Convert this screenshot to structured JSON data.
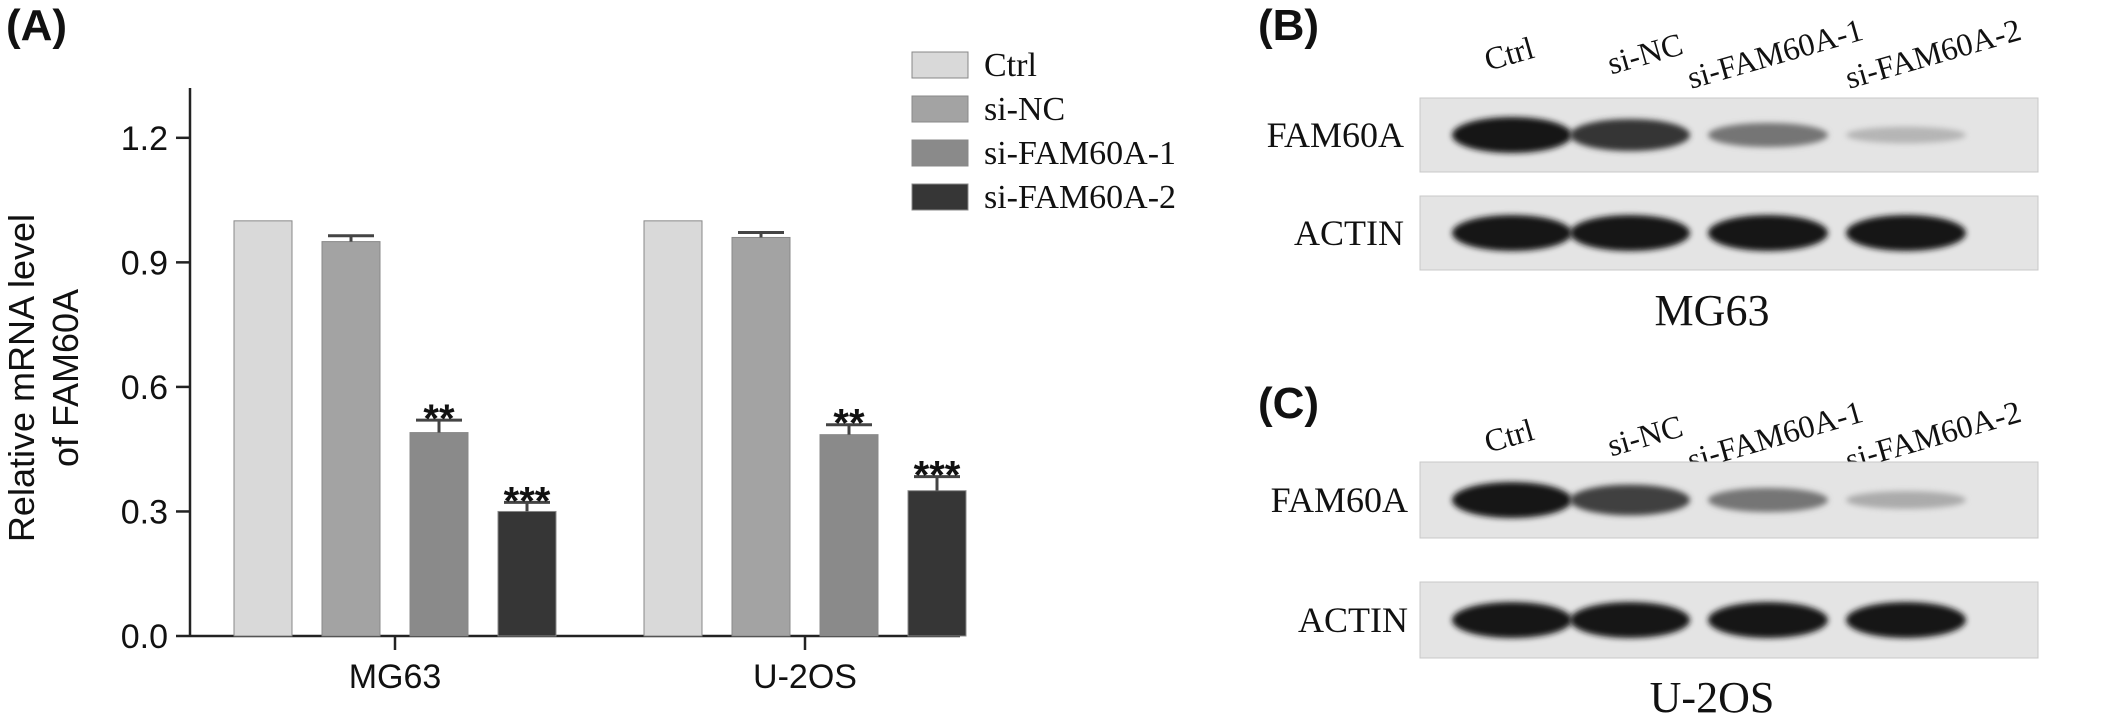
{
  "chart_data": {
    "type": "bar",
    "panel": "(A)",
    "categories": [
      "MG63",
      "U-2OS"
    ],
    "ylabel_lines": [
      "Relative mRNA level",
      "of FAM60A"
    ],
    "ylim": [
      0,
      1.32
    ],
    "yticks": [
      0.0,
      0.3,
      0.6,
      0.9,
      1.2
    ],
    "ytick_labels": [
      "0.0",
      "0.3",
      "0.6",
      "0.9",
      "1.2"
    ],
    "legend_position": "top-right",
    "grid": false,
    "series": [
      {
        "name": "Ctrl",
        "color": "#d9d9d9",
        "values": [
          1.0,
          1.0
        ],
        "errors": [
          0,
          0
        ],
        "significance": [
          "",
          ""
        ]
      },
      {
        "name": "si-NC",
        "color": "#a3a3a3",
        "values": [
          0.95,
          0.96
        ],
        "errors": [
          0.014,
          0.012
        ],
        "significance": [
          "",
          ""
        ]
      },
      {
        "name": "si-FAM60A-1",
        "color": "#8a8a8a",
        "values": [
          0.49,
          0.485
        ],
        "errors": [
          0.03,
          0.024
        ],
        "significance": [
          "**",
          "**"
        ]
      },
      {
        "name": "si-FAM60A-2",
        "color": "#363636",
        "values": [
          0.3,
          0.35
        ],
        "errors": [
          0.022,
          0.034
        ],
        "significance": [
          "***",
          "***"
        ]
      }
    ]
  },
  "blots": [
    {
      "panel": "(B)",
      "cell_line": "MG63",
      "lanes": [
        "Ctrl",
        "si-NC",
        "si-FAM60A-1",
        "si-FAM60A-2"
      ],
      "rows": [
        {
          "label": "FAM60A",
          "intensity": [
            1.0,
            0.85,
            0.55,
            0.25
          ]
        },
        {
          "label": "ACTIN",
          "intensity": [
            1.0,
            1.0,
            1.0,
            1.0
          ]
        }
      ]
    },
    {
      "panel": "(C)",
      "cell_line": "U-2OS",
      "lanes": [
        "Ctrl",
        "si-NC",
        "si-FAM60A-1",
        "si-FAM60A-2"
      ],
      "rows": [
        {
          "label": "FAM60A",
          "intensity": [
            1.0,
            0.8,
            0.55,
            0.3
          ]
        },
        {
          "label": "ACTIN",
          "intensity": [
            1.0,
            1.0,
            1.0,
            1.0
          ]
        }
      ]
    }
  ]
}
